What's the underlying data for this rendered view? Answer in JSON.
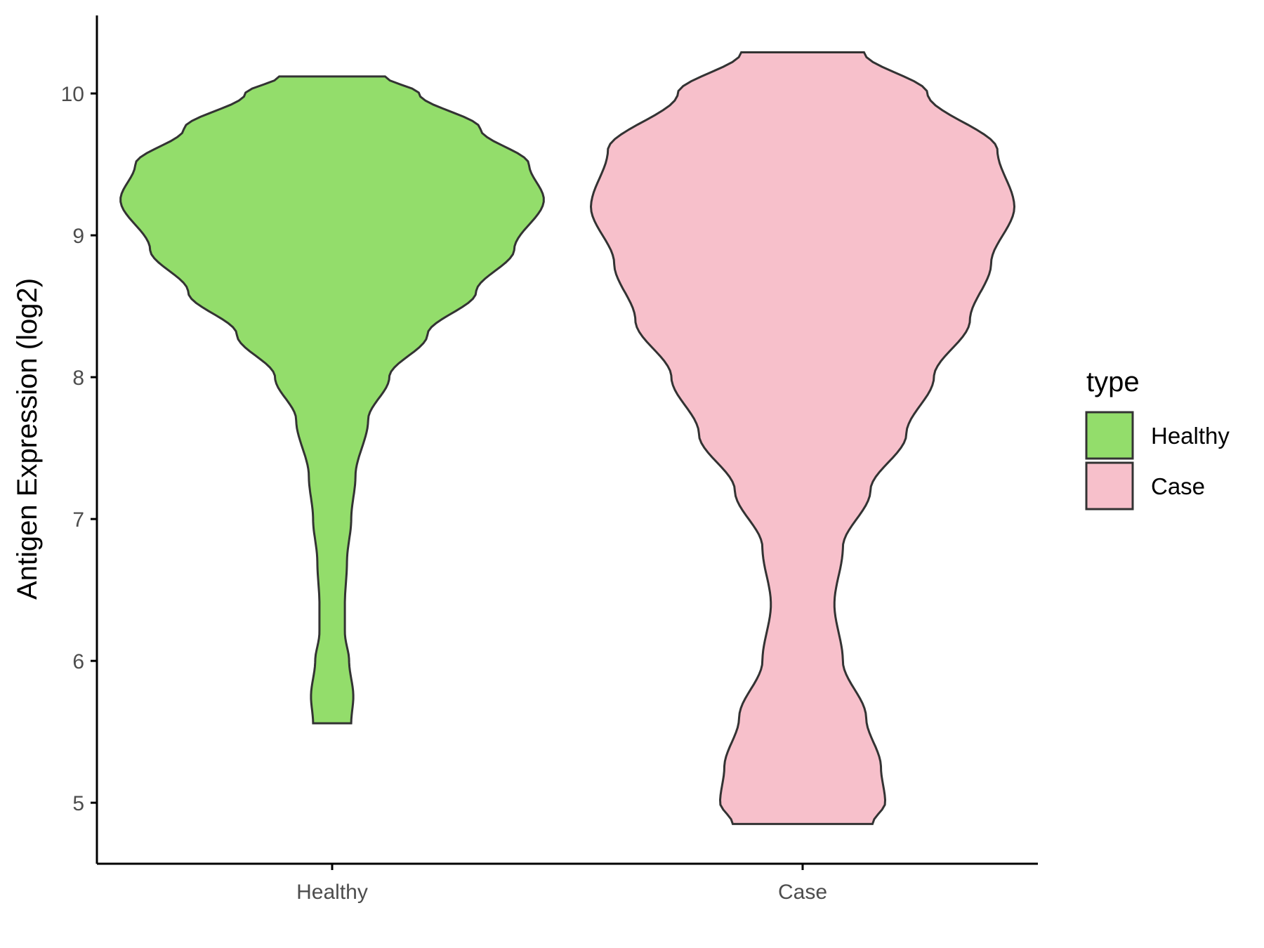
{
  "chart_data": {
    "type": "violin",
    "ylabel": "Antigen Expression (log2)",
    "xlabel": "",
    "categories": [
      "Healthy",
      "Case"
    ],
    "ylim": [
      4.57,
      10.55
    ],
    "yticks": [
      5,
      6,
      7,
      8,
      9,
      10
    ],
    "grid": false,
    "legend": {
      "title": "type",
      "placement": "right",
      "entries": [
        {
          "label": "Healthy",
          "color": "#93dd6b"
        },
        {
          "label": "Case",
          "color": "#f7c0cb"
        }
      ]
    },
    "series": [
      {
        "name": "Healthy",
        "color": "#93dd6b",
        "min": 5.56,
        "max": 10.12,
        "density": [
          [
            5.56,
            0.09
          ],
          [
            5.75,
            0.1
          ],
          [
            6.0,
            0.08
          ],
          [
            6.2,
            0.06
          ],
          [
            6.4,
            0.06
          ],
          [
            6.7,
            0.07
          ],
          [
            7.0,
            0.09
          ],
          [
            7.3,
            0.11
          ],
          [
            7.7,
            0.17
          ],
          [
            8.0,
            0.27
          ],
          [
            8.3,
            0.45
          ],
          [
            8.6,
            0.68
          ],
          [
            8.9,
            0.86
          ],
          [
            9.25,
            1.0
          ],
          [
            9.5,
            0.93
          ],
          [
            9.75,
            0.7
          ],
          [
            10.0,
            0.41
          ],
          [
            10.12,
            0.25
          ]
        ]
      },
      {
        "name": "Case",
        "color": "#f7c0cb",
        "min": 4.85,
        "max": 10.29,
        "density": [
          [
            4.85,
            0.33
          ],
          [
            5.0,
            0.39
          ],
          [
            5.25,
            0.37
          ],
          [
            5.6,
            0.3
          ],
          [
            6.0,
            0.19
          ],
          [
            6.4,
            0.15
          ],
          [
            6.8,
            0.19
          ],
          [
            7.2,
            0.32
          ],
          [
            7.6,
            0.49
          ],
          [
            8.0,
            0.62
          ],
          [
            8.4,
            0.79
          ],
          [
            8.8,
            0.89
          ],
          [
            9.2,
            1.0
          ],
          [
            9.6,
            0.92
          ],
          [
            10.0,
            0.59
          ],
          [
            10.29,
            0.29
          ]
        ]
      }
    ]
  }
}
